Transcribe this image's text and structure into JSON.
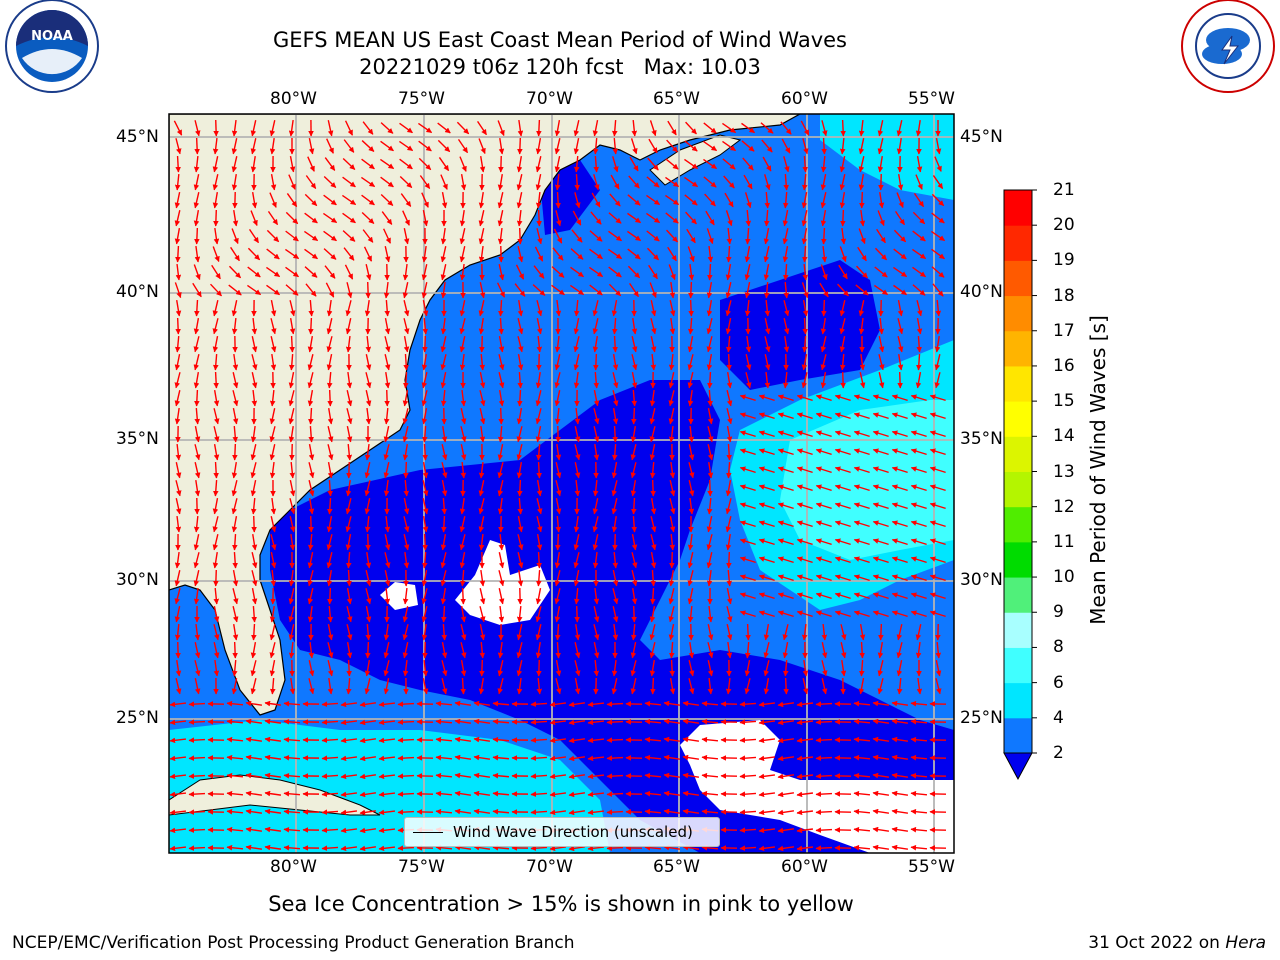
{
  "header": {
    "title": "GEFS MEAN US East Coast Mean Period of Wind Waves",
    "subtitle": "20221029 t06z 120h fcst   Max: 10.03"
  },
  "logos": {
    "left": "NOAA",
    "left_ring": "NATIONAL OCEANIC AND ATMOSPHERIC ADMINISTRATION · U.S. DEPARTMENT OF COMMERCE",
    "right_ring": "NATIONAL WEATHER SERVICE"
  },
  "axes": {
    "lon_ticks": [
      "80°W",
      "75°W",
      "70°W",
      "65°W",
      "60°W",
      "55°W"
    ],
    "lat_ticks": [
      "45°N",
      "40°N",
      "35°N",
      "30°N",
      "25°N"
    ],
    "lon_range": [
      -85,
      -54.2
    ],
    "lat_range": [
      20.5,
      45.8
    ]
  },
  "legend": {
    "label": "Wind Wave Direction (unscaled)"
  },
  "colorbar": {
    "label": "Mean Period of Wind Waves [s]",
    "ticks": [
      "2",
      "4",
      "6",
      "8",
      "9",
      "10",
      "11",
      "12",
      "13",
      "14",
      "15",
      "16",
      "17",
      "18",
      "19",
      "20",
      "21"
    ],
    "colors": [
      "#0f78ff",
      "#00e6ff",
      "#40ffff",
      "#a8ffff",
      "#50f07a",
      "#00dc00",
      "#50ed00",
      "#b4f500",
      "#dcf500",
      "#ffff00",
      "#ffe600",
      "#ffb400",
      "#ff8c00",
      "#ff5a00",
      "#ff2800",
      "#ff0000"
    ],
    "extend_color": "#0000ee"
  },
  "map_colors": {
    "land": "#efefdc",
    "band_0_2": "#0000ee",
    "band_2_4": "#0f78ff",
    "band_4_6": "#00e6ff",
    "band_6_8": "#40ffff",
    "arrows": "#ff0000",
    "grid": "#b4b4b4"
  },
  "footnote": "Sea Ice Concentration > 15% is shown in pink to yellow",
  "credit": "NCEP/EMC/Verification Post Processing Product Generation Branch",
  "datestamp": {
    "date": "31 Oct 2022 on",
    "machine": "Hera"
  }
}
